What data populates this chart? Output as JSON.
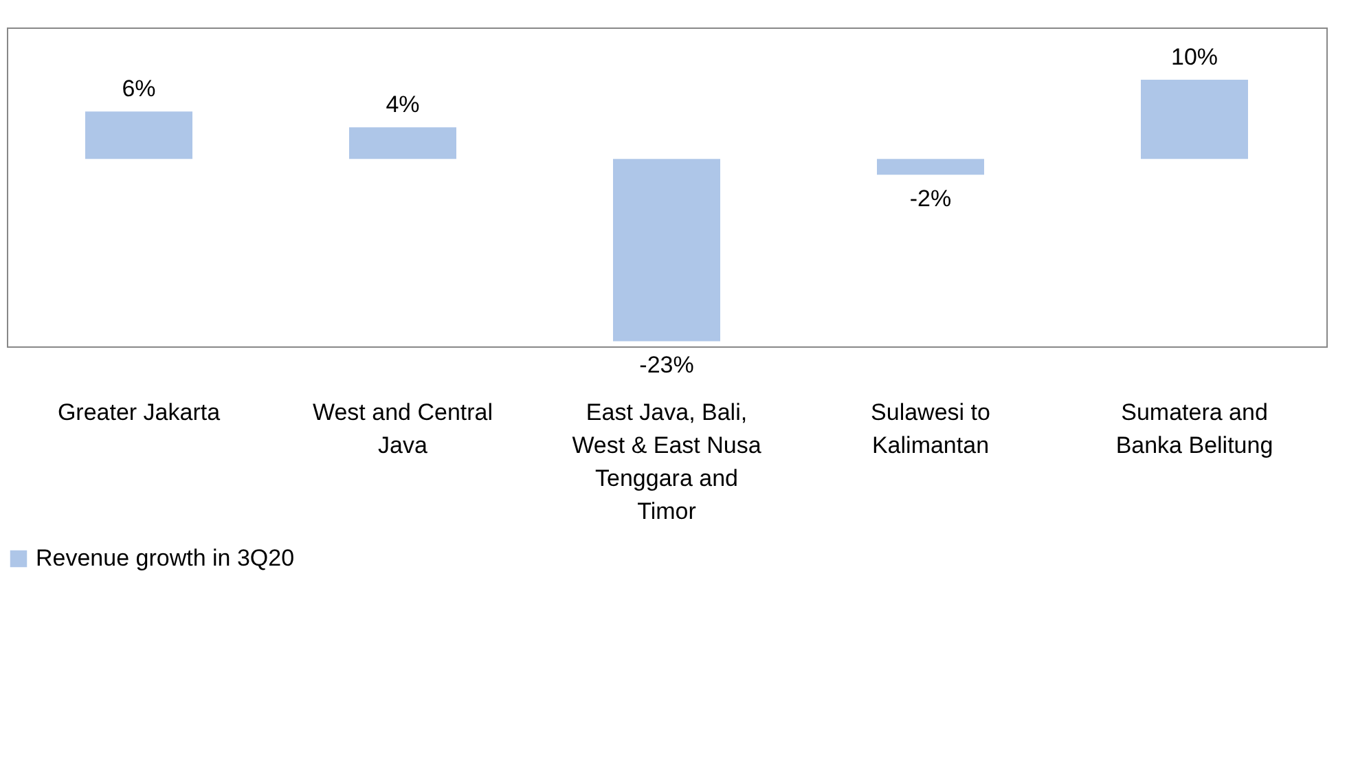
{
  "chart_data": {
    "type": "bar",
    "categories": [
      "Greater Jakarta",
      "West and Central Java",
      "East Java, Bali, West & East Nusa Tenggara and Timor",
      "Sulawesi to Kalimantan",
      "Sumatera and Banka Belitung"
    ],
    "series": [
      {
        "name": "Revenue growth in 3Q20",
        "color": "#aec6e8",
        "values": [
          6,
          4,
          -23,
          -2,
          10
        ],
        "value_labels": [
          "6%",
          "4%",
          "-23%",
          "-2%",
          "10%"
        ]
      }
    ],
    "legend": "bottom",
    "grid": false
  }
}
